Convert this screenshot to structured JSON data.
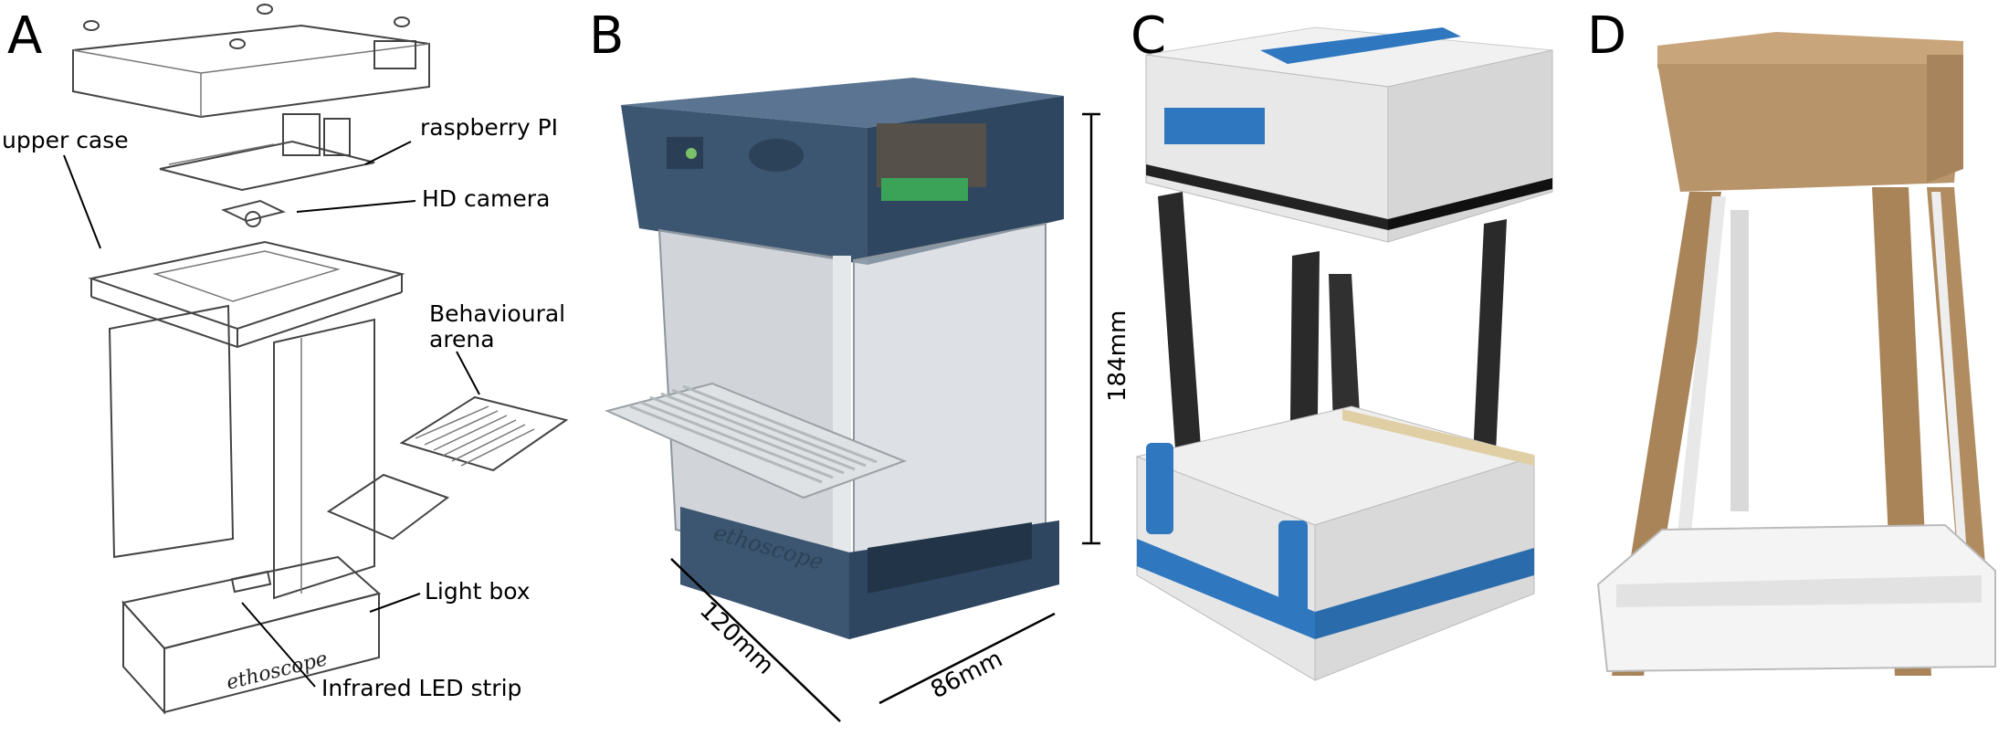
{
  "panels": {
    "a": {
      "letter": "A"
    },
    "b": {
      "letter": "B"
    },
    "c": {
      "letter": "C"
    },
    "d": {
      "letter": "D"
    }
  },
  "callouts": {
    "upper_case": "upper case",
    "raspberry_pi": "raspberry PI",
    "hd_camera": "HD camera",
    "arena_line1": "Behavioural",
    "arena_line2": "arena",
    "light_box": "Light box",
    "led_strip": "Infrared LED strip"
  },
  "dimensions": {
    "height": "184mm",
    "depth": "120mm",
    "width": "86mm"
  },
  "logo_text": "ethoscope",
  "colors": {
    "steel_blue": "#3c5570",
    "lego_blue": "#2f78bf",
    "cardboard": "#b8946a",
    "pcb_green": "#3aa357"
  }
}
